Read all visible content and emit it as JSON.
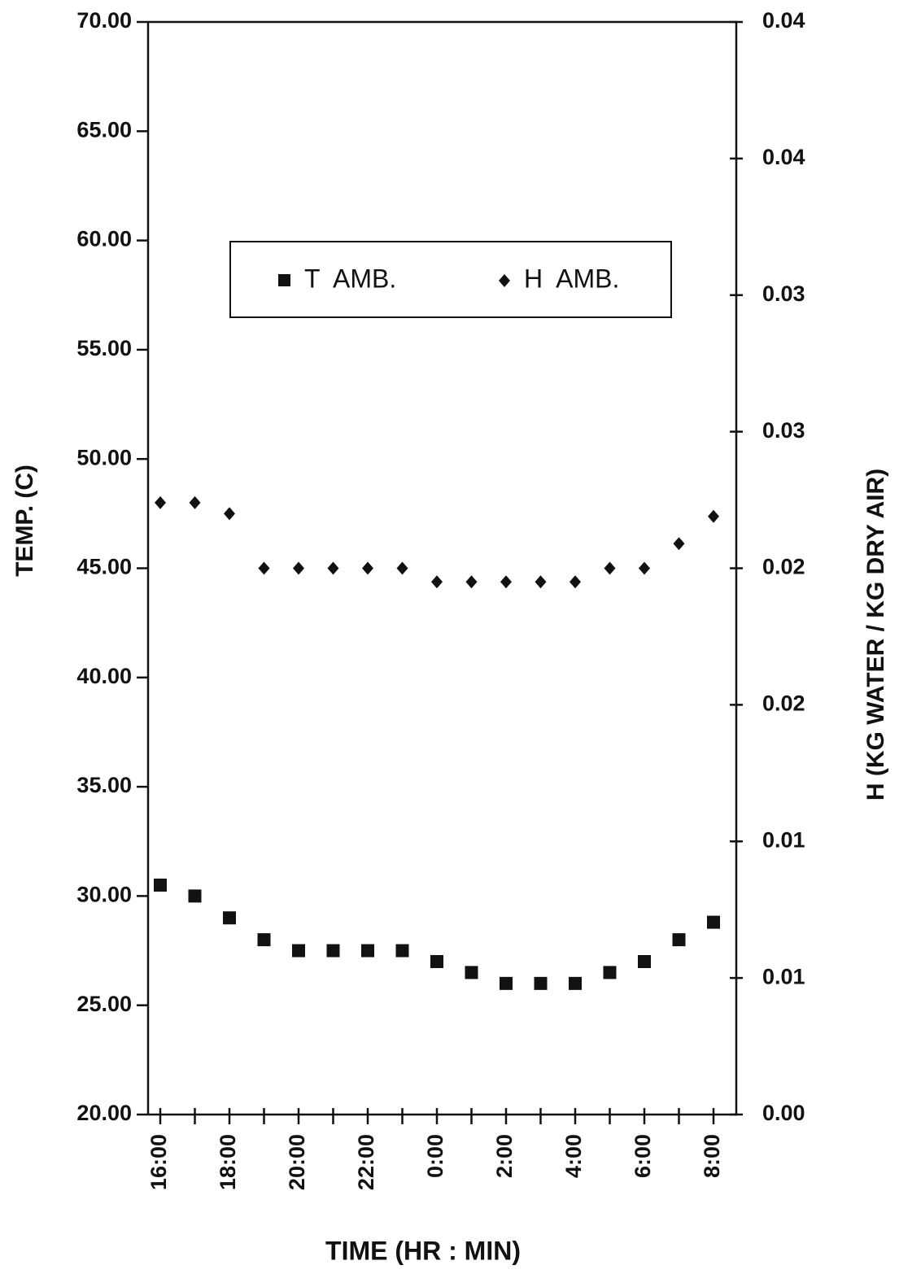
{
  "chart_data": {
    "type": "scatter",
    "x_label": "TIME (HR : MIN)",
    "y_label": "TEMP. (C)",
    "y2_label": "H (KG WATER / KG DRY AIR)",
    "categories": [
      "16:00",
      null,
      "18:00",
      null,
      "20:00",
      null,
      "22:00",
      null,
      "0:00",
      null,
      "2:00",
      null,
      "4:00",
      null,
      "6:00",
      null,
      "8:00"
    ],
    "series": [
      {
        "name": "T  AMB.",
        "color": "#111111",
        "marker": "square",
        "values": [
          30.5,
          30,
          29,
          28,
          27.5,
          27.5,
          27.5,
          27.5,
          27,
          26.5,
          26,
          26,
          26,
          26.5,
          27,
          28,
          28.8
        ]
      },
      {
        "name": "H  AMB.",
        "color": "#111111",
        "marker": "diamond",
        "axis": "y2",
        "values": [
          0.0224,
          0.0224,
          0.022,
          0.02,
          0.02,
          0.02,
          0.02,
          0.02,
          0.0195,
          0.0195,
          0.0195,
          0.0195,
          0.0195,
          0.02,
          0.02,
          0.0209,
          0.0219
        ]
      }
    ],
    "ylim": [
      20,
      70
    ],
    "yticks": [
      {
        "value": 20,
        "label": "20.00"
      },
      {
        "value": 25,
        "label": "25.00"
      },
      {
        "value": 30,
        "label": "30.00"
      },
      {
        "value": 35,
        "label": "35.00"
      },
      {
        "value": 40,
        "label": "40.00"
      },
      {
        "value": 45,
        "label": "45.00"
      },
      {
        "value": 50,
        "label": "50.00"
      },
      {
        "value": 55,
        "label": "55.00"
      },
      {
        "value": 60,
        "label": "60.00"
      },
      {
        "value": 65,
        "label": "65.00"
      },
      {
        "value": 70,
        "label": "70.00"
      }
    ],
    "y2lim": [
      0,
      0.04
    ],
    "y2ticks": [
      {
        "value": 0,
        "label": "0.00"
      },
      {
        "value": 0.005,
        "label": "0.01"
      },
      0.01,
      {
        "value": 0.015,
        "label": "0.02"
      },
      0.02,
      {
        "value": 0.025,
        "label": "0.03"
      },
      0.03,
      {
        "value": 0.035,
        "label": "0.04"
      },
      0.04
    ],
    "legend": "top"
  }
}
